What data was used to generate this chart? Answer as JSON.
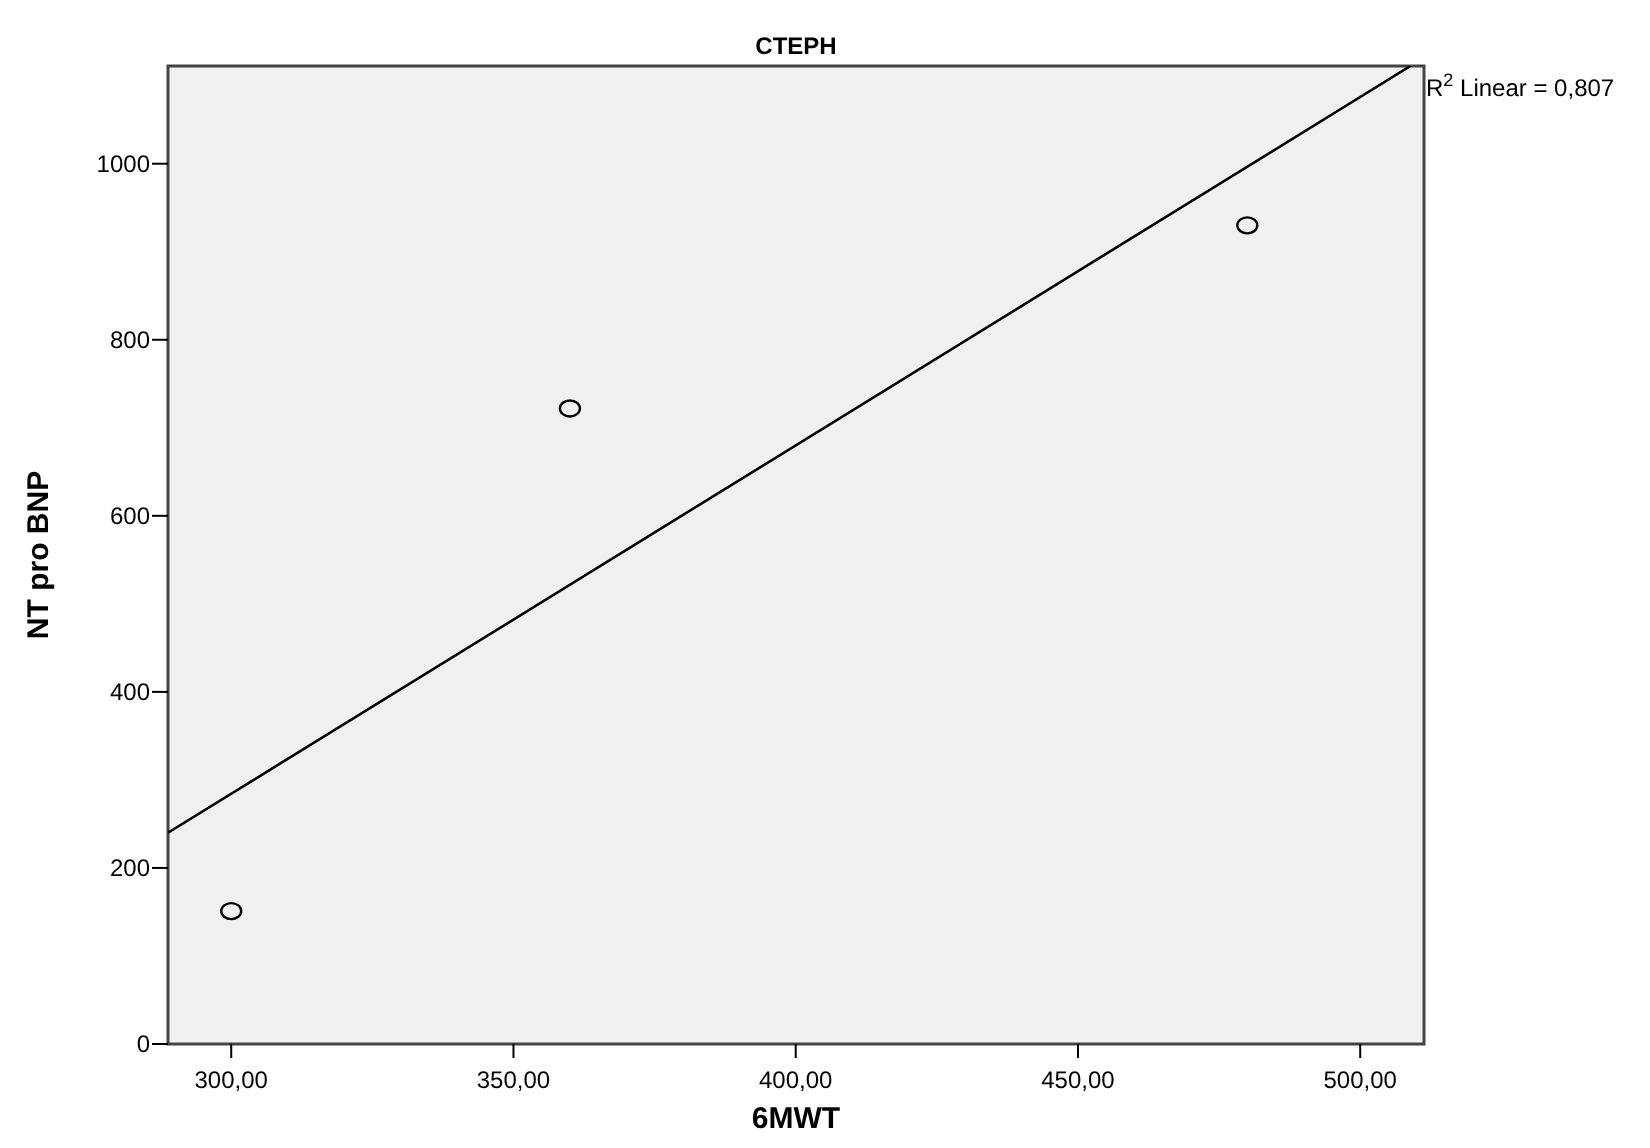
{
  "chart_data": {
    "type": "scatter",
    "title": "CTEPH",
    "xlabel": "6MWT",
    "ylabel": "NT pro BNP",
    "x": [
      300,
      360,
      480
    ],
    "series": [
      {
        "color": "#000000",
        "values": [
          151,
          722,
          930
        ],
        "marker": "circle"
      },
      {
        "type": "line",
        "color": "#000000",
        "x": [
          288.8,
          508.9
        ],
        "values": [
          240,
          1111
        ],
        "marker": "none",
        "line_style": "solid"
      }
    ],
    "xlim": [
      288.8,
      511.3
    ],
    "ylim": [
      0,
      1111
    ],
    "xticks": [
      {
        "value": 300,
        "label": "300,00"
      },
      {
        "value": 350,
        "label": "350,00"
      },
      {
        "value": 400,
        "label": "400,00"
      },
      {
        "value": 450,
        "label": "450,00"
      },
      {
        "value": 500,
        "label": "500,00"
      }
    ],
    "yticks": [
      0,
      200,
      400,
      600,
      800,
      1000
    ],
    "grid": false,
    "annotations": [
      "R$^{2}$ Linear = 0,807"
    ]
  }
}
